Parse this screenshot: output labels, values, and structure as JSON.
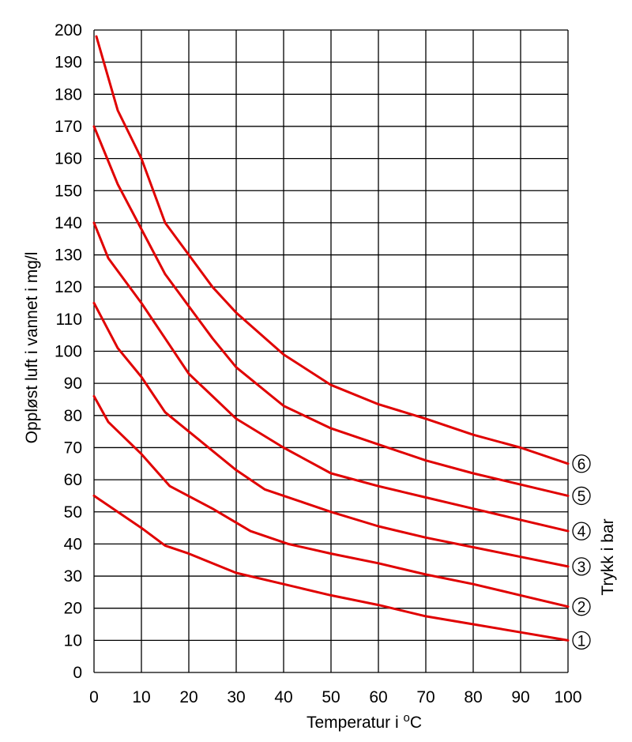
{
  "chart_data": {
    "type": "line",
    "xlabel": "Temperatur i ",
    "xlabel_unit_sup": "o",
    "xlabel_unit": "C",
    "ylabel": "Oppløst luft i vannet i mg/l",
    "legend_title": "Trykk i bar",
    "xlim": [
      0,
      100
    ],
    "ylim": [
      0,
      200
    ],
    "x_ticks": [
      0,
      10,
      20,
      30,
      40,
      50,
      60,
      70,
      80,
      90,
      100
    ],
    "y_ticks": [
      0,
      10,
      20,
      30,
      40,
      50,
      60,
      70,
      80,
      90,
      100,
      110,
      120,
      130,
      140,
      150,
      160,
      170,
      180,
      190,
      200
    ],
    "grid": true,
    "line_color": "#e00000",
    "series": [
      {
        "name": "1",
        "x": [
          0,
          10,
          15,
          20,
          30,
          40,
          50,
          60,
          70,
          80,
          90,
          100
        ],
        "y": [
          55,
          45,
          39.5,
          37,
          31,
          27.5,
          24,
          21,
          17.5,
          15,
          12.5,
          10
        ]
      },
      {
        "name": "2",
        "x": [
          0,
          3,
          10,
          16,
          25,
          33,
          41,
          50,
          60,
          70,
          80,
          90,
          100
        ],
        "y": [
          86,
          78,
          68,
          58,
          51,
          44,
          40,
          37,
          34,
          30.5,
          27.5,
          24,
          20.5
        ]
      },
      {
        "name": "3",
        "x": [
          0,
          5,
          10,
          15,
          20,
          30,
          36,
          40,
          50,
          60,
          70,
          80,
          90,
          100
        ],
        "y": [
          115,
          101,
          92,
          81,
          75,
          63,
          57,
          55,
          50,
          45.5,
          42,
          39,
          36,
          33
        ]
      },
      {
        "name": "4",
        "x": [
          0,
          3,
          10,
          15,
          20,
          25,
          30,
          40,
          50,
          60,
          70,
          80,
          90,
          100
        ],
        "y": [
          140,
          129,
          115,
          104,
          93,
          86,
          79,
          70,
          62,
          58,
          54.5,
          51,
          47.5,
          44
        ]
      },
      {
        "name": "5",
        "x": [
          0,
          5,
          10,
          15,
          20,
          25,
          30,
          40,
          50,
          60,
          70,
          80,
          90,
          100
        ],
        "y": [
          170,
          152,
          138,
          124,
          114,
          104,
          95,
          83,
          76,
          71,
          66,
          62,
          58.5,
          55
        ]
      },
      {
        "name": "6",
        "x": [
          0.5,
          5,
          10,
          15,
          20,
          25,
          30,
          40,
          50,
          60,
          70,
          80,
          90,
          100
        ],
        "y": [
          198,
          175,
          160,
          140,
          130,
          120,
          112,
          99,
          89.5,
          83.5,
          79,
          74,
          70,
          65
        ]
      }
    ]
  }
}
